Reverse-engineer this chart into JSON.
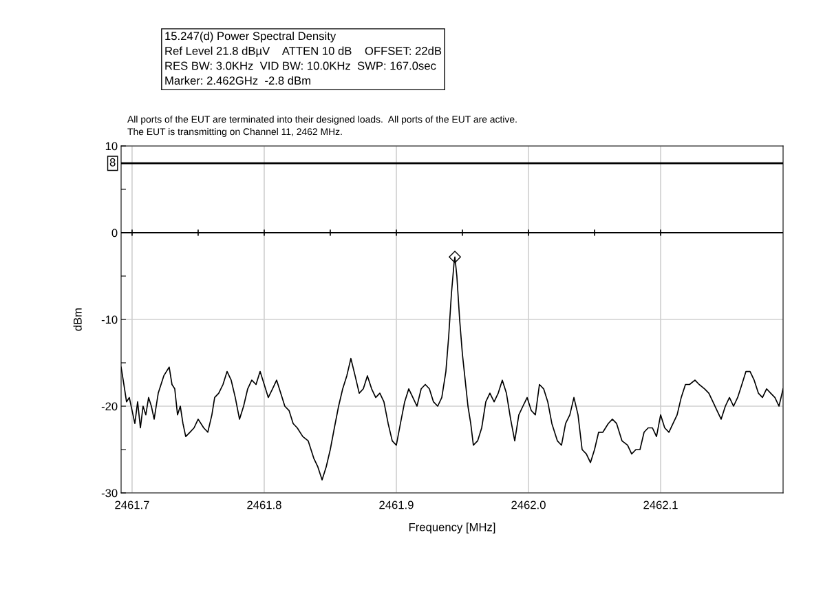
{
  "chart_data": {
    "type": "line",
    "title": "15.247(d) Power Spectral Density",
    "subtitle": "Ref Level 21.8 dBµV    ATTEN 10 dB    OFFSET: 22dB\nRES BW: 3.0KHz  VID BW: 10.0KHz  SWP: 167.0sec\nMarker: 2.462GHz  -2.8 dBm",
    "annotations": [
      "All ports of the EUT are terminated into their designed loads.  All ports of the EUT are active.\nThe EUT is transmitting on Channel 11, 2462 MHz."
    ],
    "xlabel": "Frequency [MHz]",
    "ylabel": "dBm",
    "xlim": [
      2461.6917,
      2462.1927
    ],
    "xticks": [
      2461.7,
      2461.8,
      2461.9,
      {
        "value": 2462.0,
        "label": "2462.0"
      },
      2462.1
    ],
    "ylim": [
      -30,
      10
    ],
    "yticks": [
      {
        "value": -30,
        "label": "-30"
      },
      {
        "value": -25,
        "label": null
      },
      {
        "value": -20,
        "label": "-20"
      },
      {
        "value": -15,
        "label": null
      },
      {
        "value": -10,
        "label": "-10"
      },
      {
        "value": -5,
        "label": null
      },
      0,
      {
        "value": 5,
        "label": null
      },
      10
    ],
    "grid": true,
    "line_style": "solid",
    "ref_lines": [
      {
        "axis": "y",
        "value": 8,
        "label": "8",
        "color": "#000000"
      },
      {
        "axis": "y",
        "value": 0,
        "color": "#000000"
      }
    ],
    "series": [
      {
        "color": "#000000",
        "marker": "none",
        "x": [
          2461.6917,
          2461.6938,
          2461.6958,
          2461.6979,
          2461.7,
          2461.7021,
          2461.7042,
          2461.7063,
          2461.7083,
          2461.7104,
          2461.7125,
          2461.7146,
          2461.7167,
          2461.7198,
          2461.7219,
          2461.724,
          2461.726,
          2461.7281,
          2461.7302,
          2461.7323,
          2461.7344,
          2461.7365,
          2461.7385,
          2461.7406,
          2461.7438,
          2461.7469,
          2461.75,
          2461.7542,
          2461.7573,
          2461.7604,
          2461.7625,
          2461.7656,
          2461.7688,
          2461.7719,
          2461.775,
          2461.7781,
          2461.7813,
          2461.7844,
          2461.7875,
          2461.7906,
          2461.7938,
          2461.7969,
          2461.8,
          2461.8031,
          2461.8063,
          2461.8094,
          2461.8125,
          2461.8156,
          2461.8188,
          2461.8219,
          2461.825,
          2461.8292,
          2461.8333,
          2461.8375,
          2461.8406,
          2461.8438,
          2461.8469,
          2461.85,
          2461.8531,
          2461.8563,
          2461.8594,
          2461.8625,
          2461.8656,
          2461.8688,
          2461.8719,
          2461.875,
          2461.8781,
          2461.8813,
          2461.8844,
          2461.8875,
          2461.8906,
          2461.8938,
          2461.8969,
          2461.9,
          2461.9031,
          2461.9063,
          2461.9094,
          2461.9125,
          2461.9156,
          2461.9188,
          2461.9219,
          2461.925,
          2461.9281,
          2461.9313,
          2461.9344,
          2461.9375,
          2461.9396,
          2461.9417,
          2461.9438,
          2461.9443,
          2461.9458,
          2461.9479,
          2461.95,
          2461.9521,
          2461.9542,
          2461.9563,
          2461.9583,
          2461.9615,
          2461.9646,
          2461.9677,
          2461.9708,
          2461.974,
          2461.9771,
          2461.9802,
          2461.9833,
          2461.9865,
          2461.9896,
          2461.9927,
          2461.9958,
          2461.999,
          2462.0021,
          2462.0052,
          2462.0083,
          2462.0115,
          2462.0146,
          2462.0177,
          2462.0219,
          2462.025,
          2462.0281,
          2462.0313,
          2462.0344,
          2462.0375,
          2462.0406,
          2462.0438,
          2462.0469,
          2462.05,
          2462.0531,
          2462.0563,
          2462.0604,
          2462.0635,
          2462.0667,
          2462.0708,
          2462.075,
          2462.0781,
          2462.0813,
          2462.0844,
          2462.0875,
          2462.0906,
          2462.0938,
          2462.0969,
          2462.1,
          2462.1031,
          2462.1063,
          2462.1094,
          2462.1125,
          2462.1156,
          2462.1188,
          2462.1219,
          2462.126,
          2462.1292,
          2462.1333,
          2462.1365,
          2462.1396,
          2462.1427,
          2462.1458,
          2462.149,
          2462.1521,
          2462.1552,
          2462.1583,
          2462.1615,
          2462.1646,
          2462.1677,
          2462.1708,
          2462.174,
          2462.1771,
          2462.1802,
          2462.1833,
          2462.1865,
          2462.1896,
          2462.1927
        ],
        "values": [
          -15.5,
          -17.5,
          -19.5,
          -19,
          -20.5,
          -22,
          -19.5,
          -22.5,
          -20,
          -21,
          -19,
          -20,
          -21.5,
          -18.5,
          -17.5,
          -16.5,
          -16,
          -15.5,
          -17.5,
          -18,
          -21,
          -20,
          -22,
          -23.5,
          -23,
          -22.5,
          -21.5,
          -22.5,
          -23,
          -21,
          -19,
          -18.5,
          -17.5,
          -16,
          -17,
          -19,
          -21.5,
          -20,
          -18,
          -17,
          -17.5,
          -16,
          -17.5,
          -19,
          -18,
          -17,
          -18.5,
          -20,
          -20.5,
          -22,
          -22.5,
          -23.5,
          -24,
          -26,
          -27,
          -28.5,
          -27,
          -25,
          -22.5,
          -20,
          -18,
          -16.5,
          -14.5,
          -16.5,
          -18.5,
          -18,
          -16.5,
          -18,
          -19,
          -18.5,
          -19.5,
          -22,
          -24,
          -24.5,
          -22,
          -19.5,
          -18,
          -19,
          -20,
          -18,
          -17.5,
          -18,
          -19.5,
          -20,
          -19,
          -16,
          -12,
          -7,
          -3.3,
          -2.8,
          -5,
          -10,
          -14,
          -17,
          -20,
          -22,
          -24.5,
          -24,
          -22.5,
          -19.5,
          -18.5,
          -19.5,
          -18.5,
          -17,
          -18.5,
          -21.5,
          -24,
          -21,
          -20,
          -19,
          -20.5,
          -21,
          -17.5,
          -18,
          -19.5,
          -22,
          -24,
          -24.5,
          -22,
          -21,
          -19,
          -21,
          -25,
          -25.5,
          -26.5,
          -25,
          -23,
          -23,
          -22,
          -21.5,
          -22,
          -24,
          -24.5,
          -25.5,
          -25,
          -25,
          -23,
          -22.5,
          -22.5,
          -23.5,
          -21,
          -22.5,
          -23,
          -22,
          -21,
          -19,
          -17.5,
          -17.5,
          -17,
          -17.5,
          -18,
          -18.5,
          -19.5,
          -20.5,
          -21.5,
          -20,
          -19,
          -20,
          -19,
          -17.5,
          -16,
          -16,
          -17,
          -18.5,
          -19,
          -18,
          -18.5,
          -19,
          -20,
          -18
        ]
      },
      {
        "type": "scatter",
        "color": "#000000",
        "marker": "diamond",
        "x": [
          2461.9443
        ],
        "values": [
          -2.8
        ]
      }
    ]
  }
}
